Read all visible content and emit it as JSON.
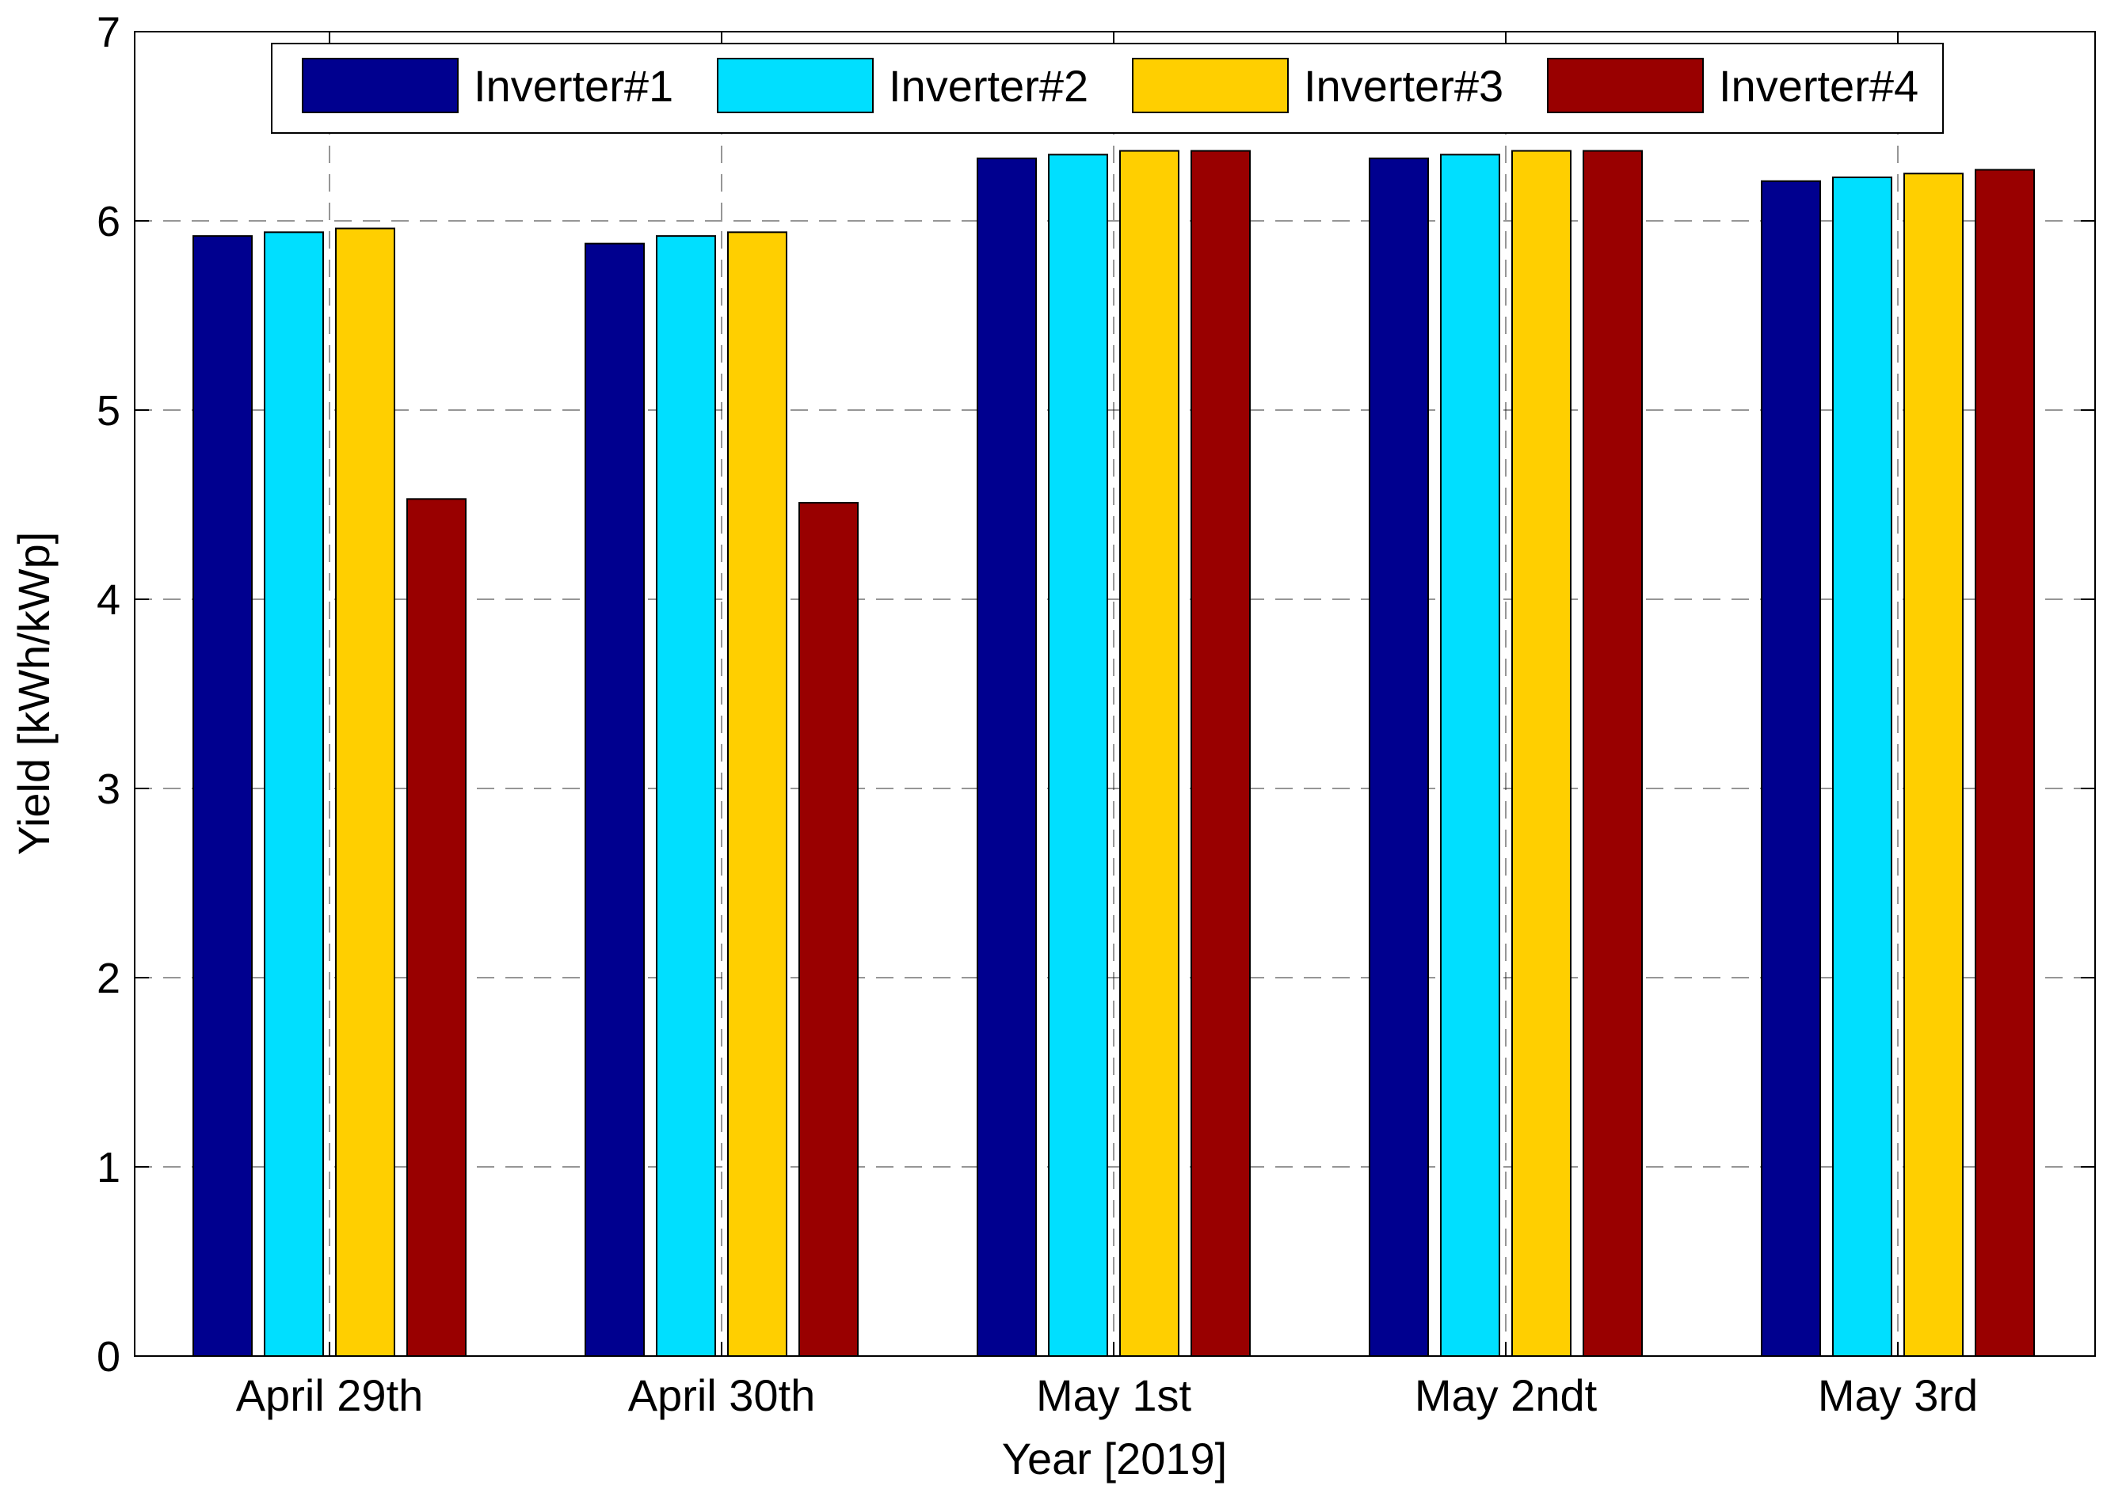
{
  "chart_data": {
    "type": "bar",
    "title": "",
    "xlabel": "Year [2019]",
    "ylabel": "Yield [kWh/kWp]",
    "ylim": [
      0,
      7
    ],
    "yticks": [
      "0",
      "1",
      "2",
      "3",
      "4",
      "5",
      "6",
      "7"
    ],
    "grid": true,
    "legend_position": "top",
    "categories": [
      "April 29th",
      "April 30th",
      "May 1st",
      "May 2ndt",
      "May 3rd"
    ],
    "series": [
      {
        "name": "Inverter#1",
        "color": "#00008F",
        "values": [
          5.92,
          5.88,
          6.33,
          6.33,
          6.21
        ]
      },
      {
        "name": "Inverter#2",
        "color": "#00DFFF",
        "values": [
          5.94,
          5.92,
          6.35,
          6.35,
          6.23
        ]
      },
      {
        "name": "Inverter#3",
        "color": "#FFCF00",
        "values": [
          5.96,
          5.94,
          6.37,
          6.37,
          6.25
        ]
      },
      {
        "name": "Inverter#4",
        "color": "#990000",
        "values": [
          4.53,
          4.51,
          6.37,
          6.37,
          6.27
        ]
      }
    ]
  }
}
